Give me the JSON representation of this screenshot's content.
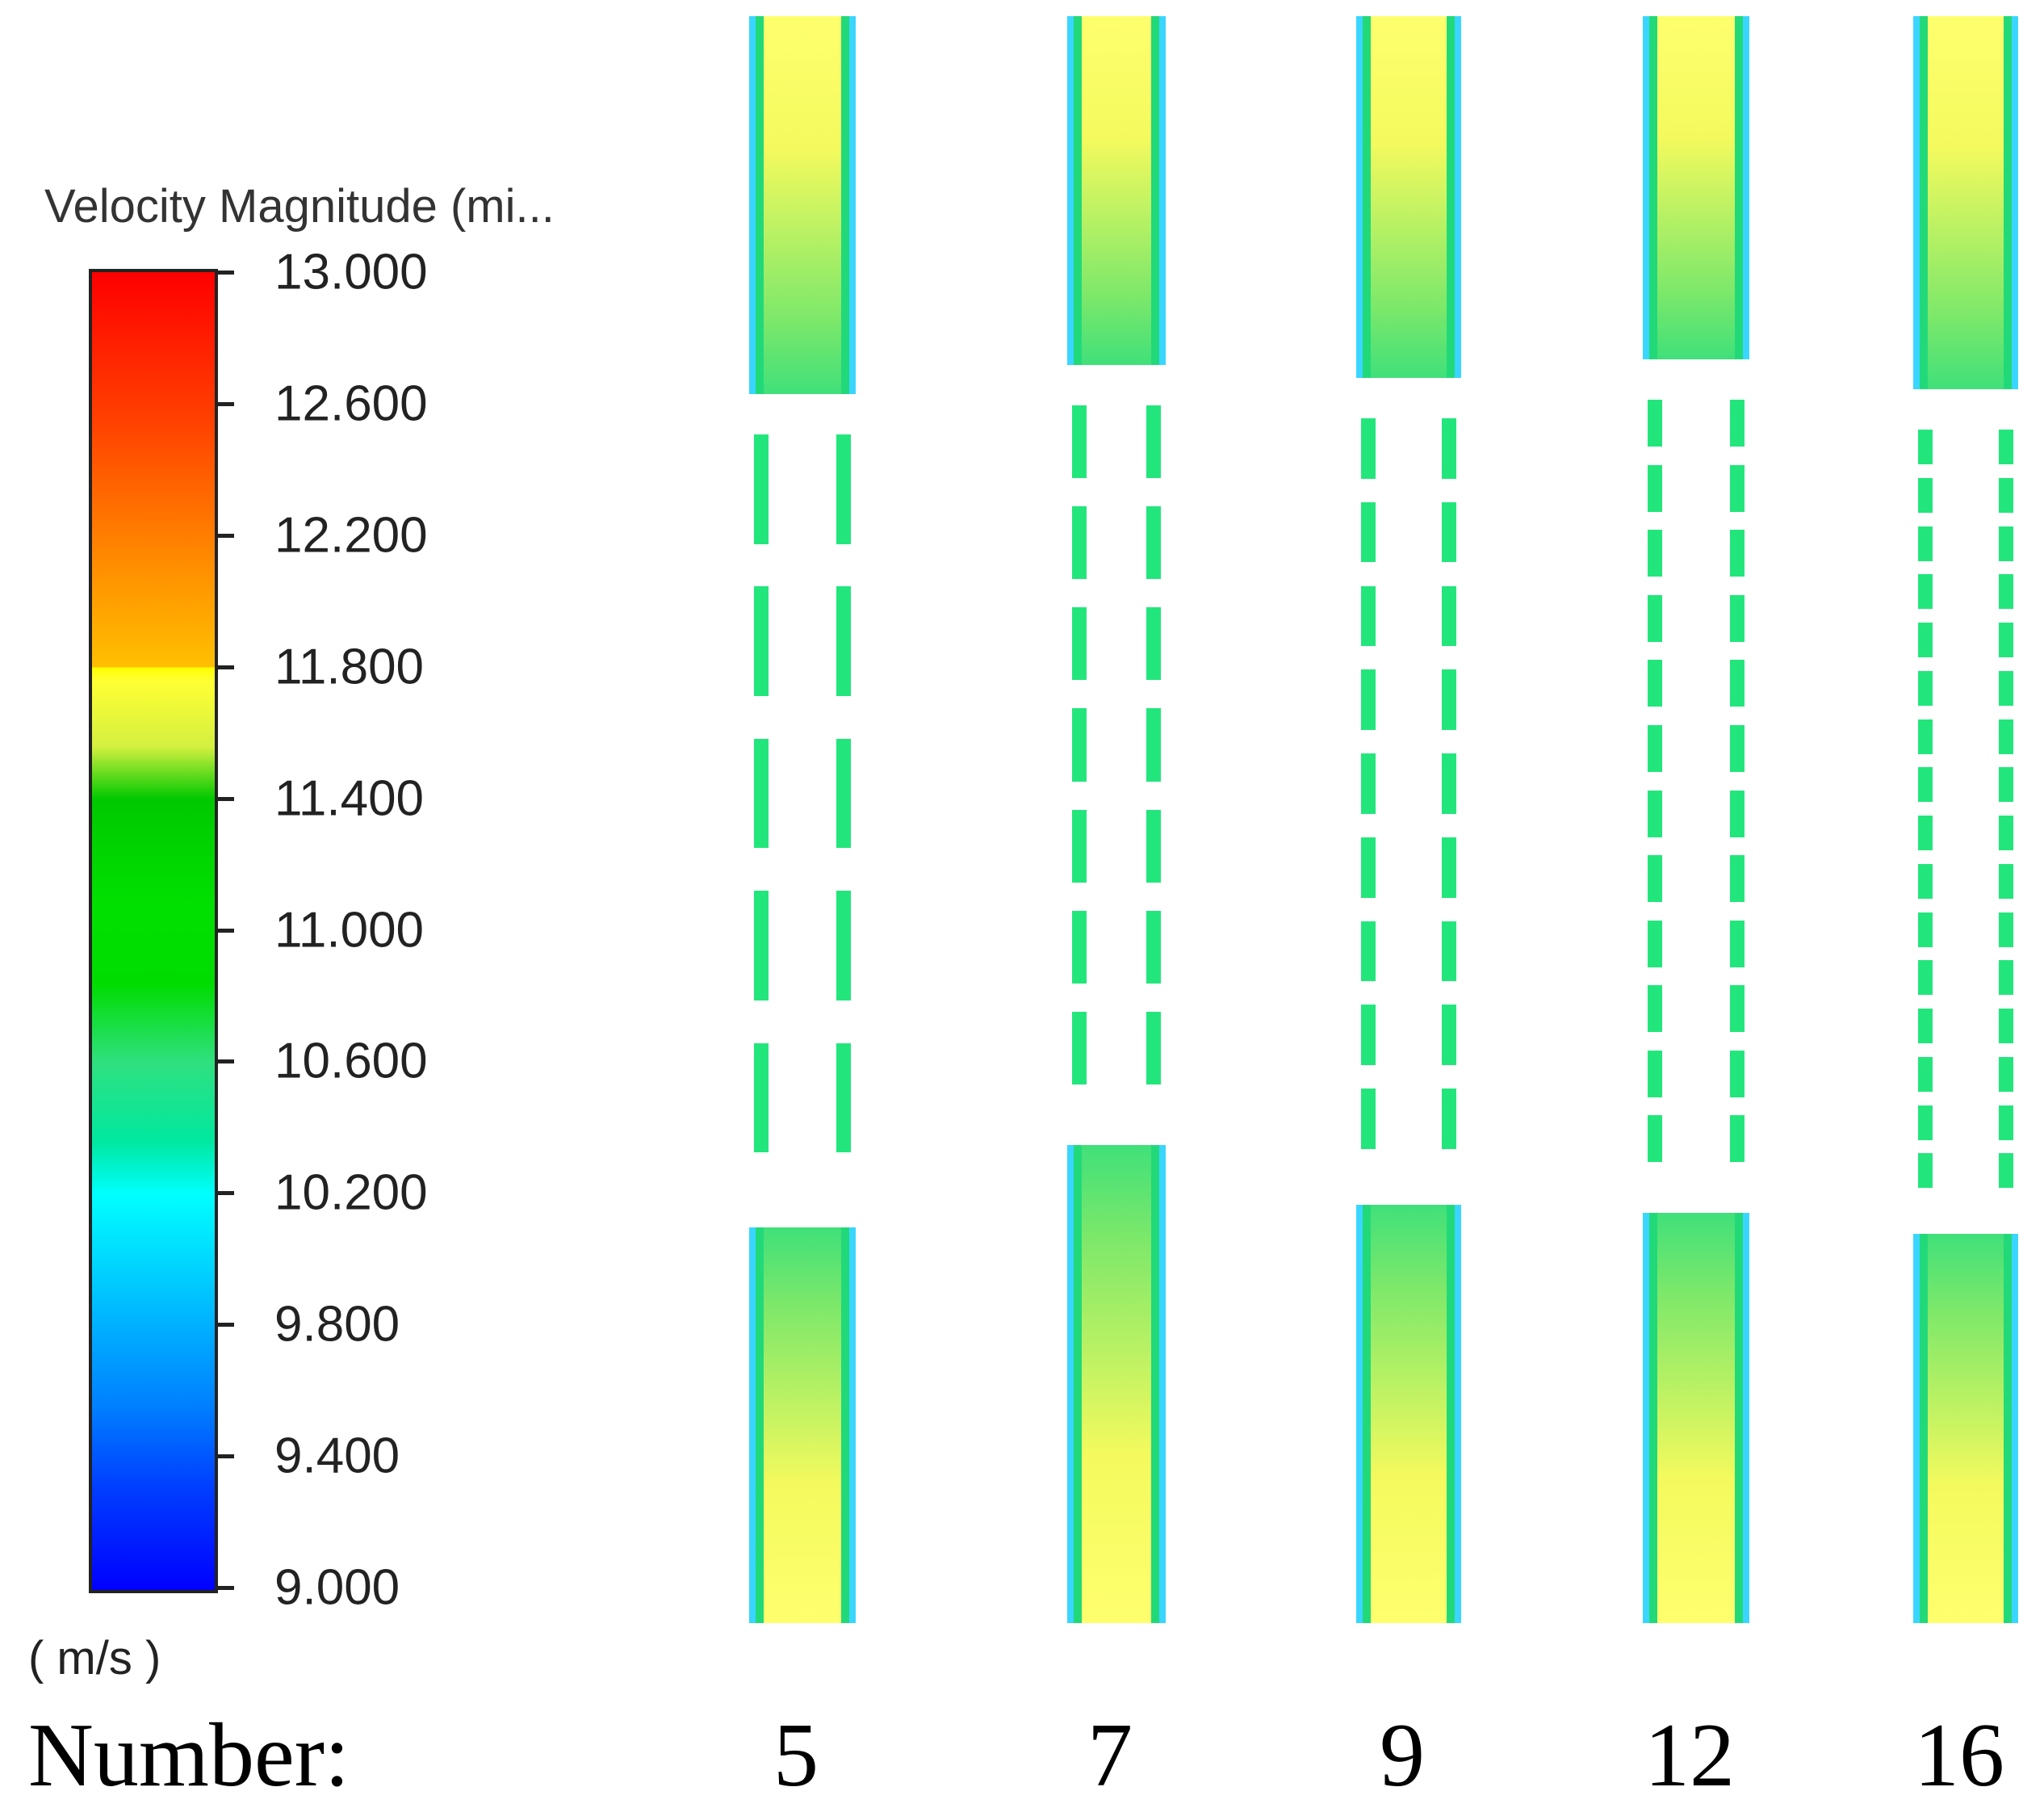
{
  "legend": {
    "title": "Velocity Magnitude (mi...",
    "units": "( m/s )",
    "ticks": [
      "13.000",
      "12.600",
      "12.200",
      "11.800",
      "11.400",
      "11.000",
      "10.600",
      "10.200",
      "9.800",
      "9.400",
      "9.000"
    ],
    "max": 13.0,
    "min": 9.0,
    "colors": [
      "#0000ff",
      "#00ffff",
      "#00e000",
      "#ffff00",
      "#ff8c00",
      "#ff0000"
    ]
  },
  "footer": {
    "label": "Number:"
  },
  "channels": [
    {
      "number": "5",
      "slots": 5
    },
    {
      "number": "7",
      "slots": 7
    },
    {
      "number": "9",
      "slots": 9
    },
    {
      "number": "12",
      "slots": 12
    },
    {
      "number": "16",
      "slots": 16
    }
  ]
}
